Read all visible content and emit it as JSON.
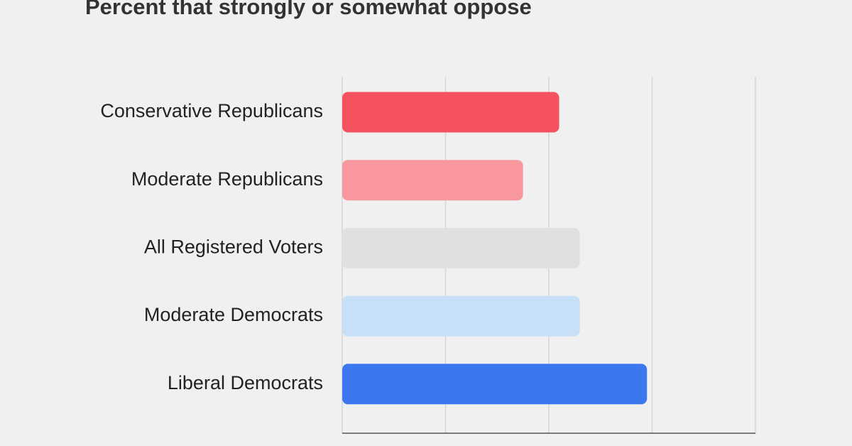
{
  "chart_data": {
    "type": "bar",
    "orientation": "horizontal",
    "title": "Percent that strongly or somewhat oppose",
    "categories": [
      "Conservative Republicans",
      "Moderate Republicans",
      "All Registered Voters",
      "Moderate Democrats",
      "Liberal Democrats"
    ],
    "values": [
      42,
      35,
      46,
      46,
      59
    ],
    "colors": [
      "#f4525f",
      "#f8989e",
      "#e0e0e0",
      "#c8e0f7",
      "#3b78ef"
    ],
    "xlim": [
      0,
      80
    ],
    "xticks": [
      0,
      20,
      40,
      60,
      80
    ],
    "grid": true
  }
}
